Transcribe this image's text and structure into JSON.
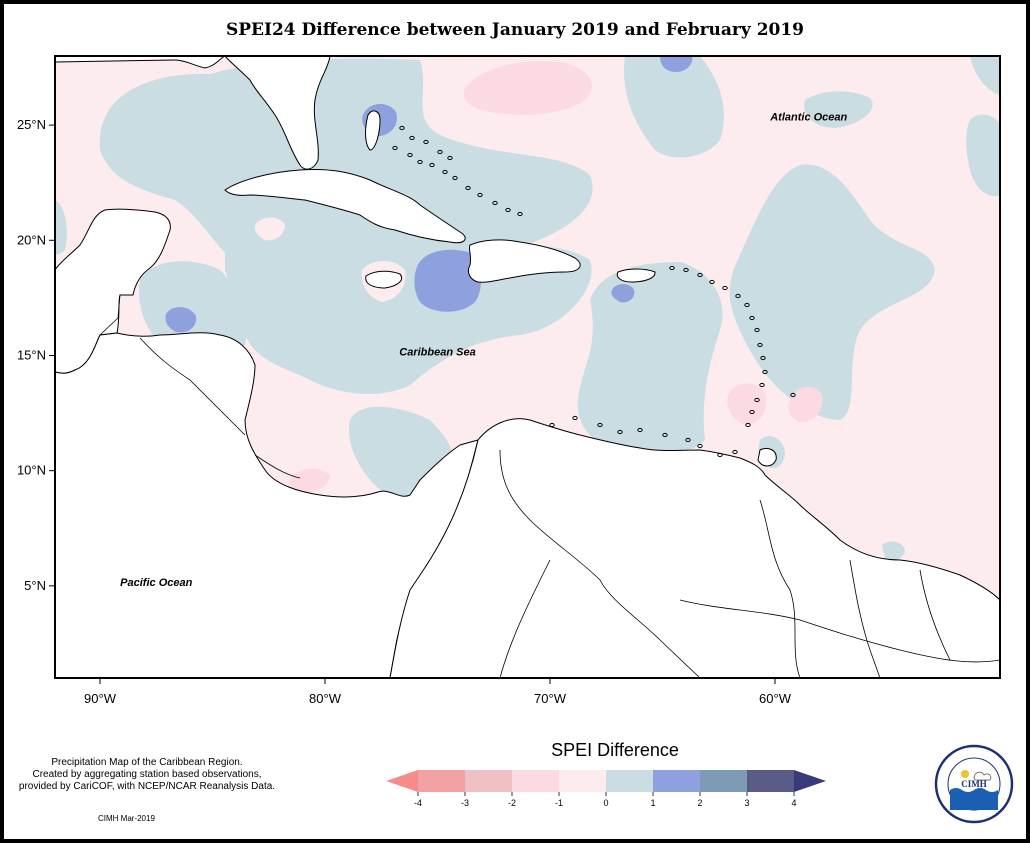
{
  "title": "SPEI24 Difference between January 2019 and February 2019",
  "map": {
    "lon_min": -92,
    "lon_max": -50,
    "lat_min": 1,
    "lat_max": 28,
    "lat_ticks": [
      {
        "value": 25,
        "label": "25°N"
      },
      {
        "value": 20,
        "label": "20°N"
      },
      {
        "value": 15,
        "label": "15°N"
      },
      {
        "value": 10,
        "label": "10°N"
      },
      {
        "value": 5,
        "label": "5°N"
      }
    ],
    "lon_ticks": [
      {
        "value": -90,
        "label": "90°W"
      },
      {
        "value": -80,
        "label": "80°W"
      },
      {
        "value": -70,
        "label": "70°W"
      },
      {
        "value": -60,
        "label": "60°W"
      }
    ],
    "labels": [
      {
        "text": "Atlantic Ocean",
        "lon": -58.5,
        "lat": 25.2
      },
      {
        "text": "Caribbean Sea",
        "lon": -75,
        "lat": 15.0
      },
      {
        "text": "Pacific Ocean",
        "lon": -87.5,
        "lat": 5.0
      }
    ]
  },
  "colors": {
    "c_m4": "#f48c8c",
    "c_m3": "#f2a2a2",
    "c_m2": "#efc0c4",
    "c_m1": "#fbdbe1",
    "c_0": "#fdecee",
    "c_1": "#c9dde3",
    "c_2": "#8fa0df",
    "c_3": "#7e9bb6",
    "c_4": "#5a5c87",
    "c_5": "#3a3a7a",
    "land": "#ffffff",
    "coast": "#000000"
  },
  "legend": {
    "title": "SPEI Difference",
    "ticks": [
      "-4",
      "-3",
      "-2",
      "-1",
      "0",
      "1",
      "2",
      "3",
      "4"
    ]
  },
  "credits": {
    "line1": "Precipitation Map of the Caribbean Region.",
    "line2": "Created by aggregating station based observations,",
    "line3": "provided by CariCOF, with NCEP/NCAR Reanalysis Data.",
    "date": "CIMH Mar-2019"
  },
  "logo": {
    "text": "CIMH",
    "ring_text": "Caribbean Institute for Meteorology and Hydrology"
  }
}
